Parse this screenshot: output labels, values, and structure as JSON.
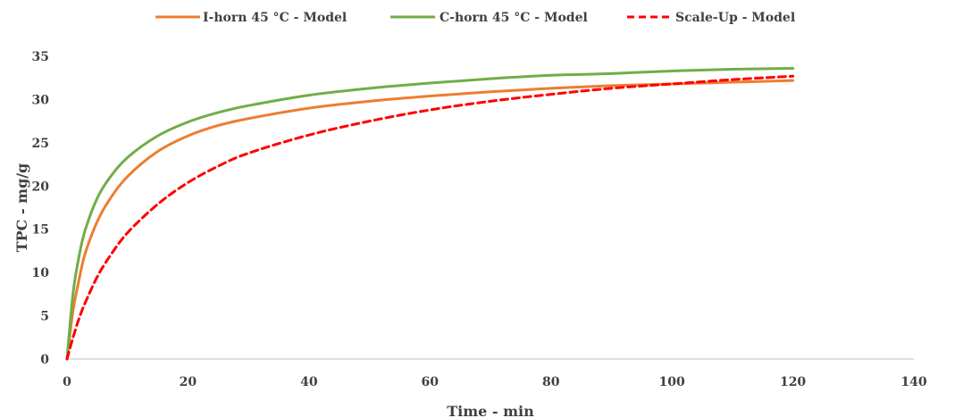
{
  "chart_data": {
    "type": "line",
    "title": "",
    "xlabel": "Time - min",
    "ylabel": "TPC - mg/g",
    "xlim": [
      0,
      140
    ],
    "ylim": [
      0,
      35
    ],
    "x_ticks": [
      0,
      20,
      40,
      60,
      80,
      100,
      120,
      140
    ],
    "y_ticks": [
      0,
      5,
      10,
      15,
      20,
      25,
      30,
      35
    ],
    "grid": false,
    "legend_position": "top",
    "series": [
      {
        "name": "I-horn 45 °C - Model",
        "color": "#ED7D31",
        "dash": "solid",
        "x": [
          0,
          1,
          2,
          3,
          5,
          7,
          10,
          15,
          20,
          25,
          30,
          40,
          50,
          60,
          70,
          80,
          90,
          100,
          110,
          120
        ],
        "y": [
          0,
          5.6,
          9.2,
          12.2,
          15.9,
          18.4,
          21.1,
          24.0,
          25.8,
          27.0,
          27.8,
          29.0,
          29.8,
          30.4,
          30.9,
          31.3,
          31.6,
          31.8,
          32.0,
          32.2
        ]
      },
      {
        "name": "C-horn 45 °C - Model",
        "color": "#70AD47",
        "dash": "solid",
        "x": [
          0,
          1,
          2,
          3,
          5,
          7,
          10,
          15,
          20,
          25,
          30,
          40,
          50,
          60,
          70,
          80,
          90,
          100,
          110,
          120
        ],
        "y": [
          0,
          7.6,
          11.9,
          14.9,
          18.6,
          20.9,
          23.3,
          25.8,
          27.4,
          28.5,
          29.3,
          30.5,
          31.3,
          31.9,
          32.4,
          32.8,
          33.0,
          33.3,
          33.5,
          33.6
        ]
      },
      {
        "name": "Scale-Up - Model",
        "color": "#FF0000",
        "dash": "dashed",
        "x": [
          0,
          1,
          2,
          3,
          5,
          7,
          10,
          15,
          20,
          25,
          30,
          40,
          50,
          60,
          70,
          80,
          90,
          100,
          110,
          120
        ],
        "y": [
          0,
          2.5,
          4.7,
          6.5,
          9.5,
          11.8,
          14.6,
          17.9,
          20.4,
          22.3,
          23.8,
          25.9,
          27.5,
          28.8,
          29.8,
          30.6,
          31.3,
          31.8,
          32.3,
          32.7
        ]
      }
    ]
  }
}
